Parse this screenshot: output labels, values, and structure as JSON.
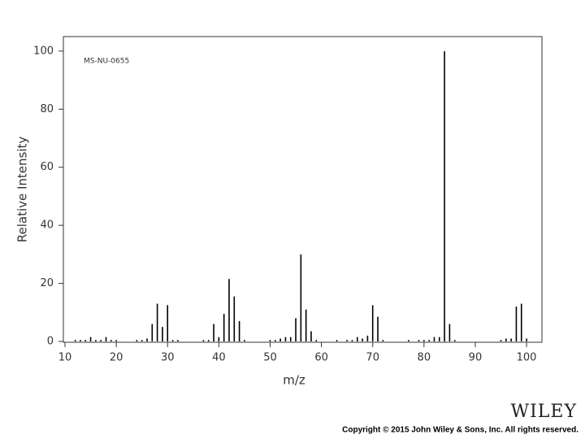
{
  "chart_data": {
    "type": "bar",
    "annotation": "MS-NU-0655",
    "x_label": "m/z",
    "y_label": "Relative Intensity",
    "x": [
      12,
      13,
      14,
      15,
      16,
      17,
      18,
      19,
      20,
      24,
      25,
      26,
      27,
      28,
      29,
      30,
      31,
      32,
      37,
      38,
      39,
      40,
      41,
      42,
      43,
      44,
      45,
      50,
      51,
      52,
      53,
      54,
      55,
      56,
      57,
      58,
      59,
      63,
      65,
      66,
      67,
      68,
      69,
      70,
      71,
      72,
      77,
      79,
      80,
      81,
      82,
      83,
      84,
      85,
      86,
      95,
      96,
      97,
      98,
      99,
      100
    ],
    "values": [
      0.5,
      0.5,
      0.5,
      1.5,
      0.5,
      0.5,
      1.5,
      0.5,
      0.5,
      0.5,
      0.5,
      1,
      6,
      13,
      5,
      12.5,
      0.5,
      0.5,
      0.5,
      0.5,
      6,
      1.5,
      9.5,
      21.5,
      15.5,
      7,
      0.5,
      0.5,
      0.5,
      1,
      1.5,
      1.5,
      8,
      30,
      11,
      3.5,
      0.5,
      0.5,
      0.5,
      0.5,
      1.5,
      1,
      2,
      12.5,
      8.5,
      0.5,
      0.5,
      0.5,
      0.5,
      0.5,
      1.5,
      1.5,
      100,
      6,
      0.5,
      0.5,
      1,
      1,
      12,
      13,
      1
    ],
    "color": "#000000",
    "xlim": [
      10,
      103
    ],
    "ylim": [
      0,
      105
    ],
    "xticks": [
      10,
      20,
      30,
      40,
      50,
      60,
      70,
      80,
      90,
      100
    ],
    "yticks": [
      0,
      20,
      40,
      60,
      80,
      100
    ]
  },
  "footer": {
    "logo": "WILEY",
    "copyright": "Copyright © 2015 John Wiley & Sons, Inc. All rights reserved."
  }
}
